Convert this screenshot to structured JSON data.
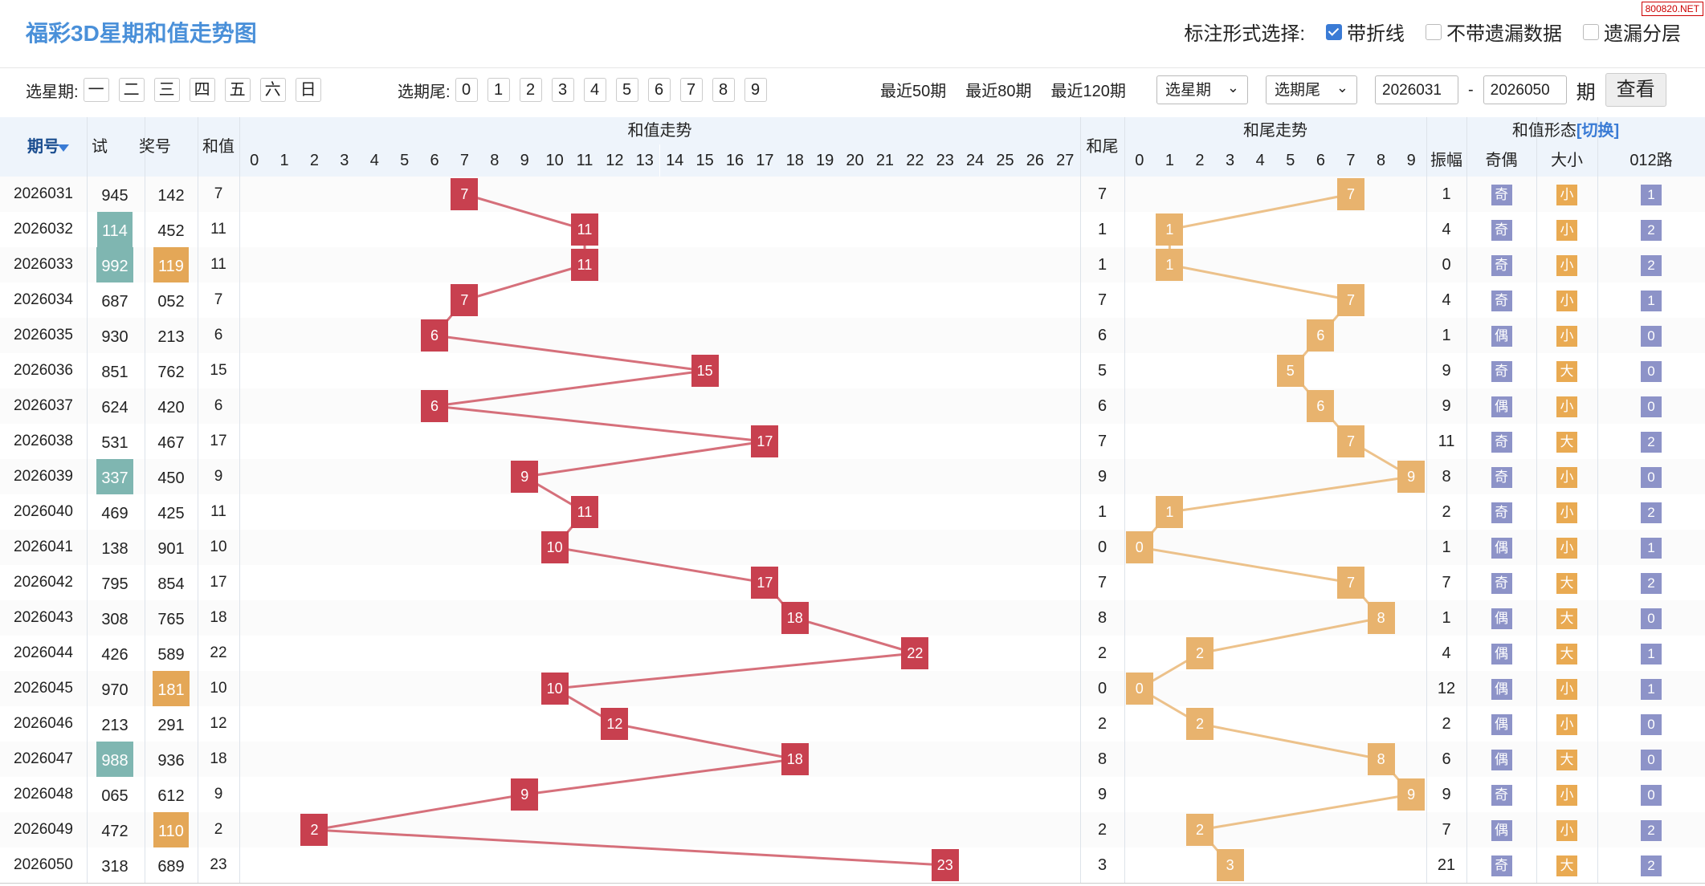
{
  "app": {
    "title": "福彩3D星期和值走势图",
    "badge": "800820.NET"
  },
  "mark_options": {
    "label": "标注形式选择:",
    "options": [
      {
        "label": "带折线",
        "checked": true
      },
      {
        "label": "不带遗漏数据",
        "checked": false
      },
      {
        "label": "遗漏分层",
        "checked": false
      }
    ]
  },
  "filter": {
    "weekday_label": "选星期:",
    "weekdays": [
      "一",
      "二",
      "三",
      "四",
      "五",
      "六",
      "日"
    ],
    "tail_label": "选期尾:",
    "tails": [
      "0",
      "1",
      "2",
      "3",
      "4",
      "5",
      "6",
      "7",
      "8",
      "9"
    ],
    "recent": [
      "最近50期",
      "最近80期",
      "最近120期"
    ],
    "weekday_select": "选星期",
    "tail_select": "选期尾",
    "from": "2026031",
    "dash": "-",
    "to": "2026050",
    "period_label": "期",
    "query": "查看"
  },
  "headers": {
    "issue": "期号",
    "test": "试机",
    "prize": "奖号",
    "sum": "和值",
    "sum_trend": "和值走势",
    "tail": "和尾",
    "tail_trend": "和尾走势",
    "shape": "和值形态",
    "switch": "[切换]",
    "amp": "振幅",
    "oe": "奇偶",
    "bs": "大小",
    "r012": "012路",
    "sum_cols": [
      "0",
      "1",
      "2",
      "3",
      "4",
      "5",
      "6",
      "7",
      "8",
      "9",
      "10",
      "11",
      "12",
      "13",
      "14",
      "15",
      "16",
      "17",
      "18",
      "19",
      "20",
      "21",
      "22",
      "23",
      "24",
      "25",
      "26",
      "27"
    ],
    "tail_cols": [
      "0",
      "1",
      "2",
      "3",
      "4",
      "5",
      "6",
      "7",
      "8",
      "9"
    ]
  },
  "colors": {
    "red": "#c8404f",
    "orange": "#e8b36e",
    "blue": "#8d93c8",
    "teal": "#7fb6b1"
  },
  "rows": [
    {
      "issue": "2026031",
      "test": "945",
      "test_hl": "",
      "prize": "142",
      "prize_hl": "",
      "sum": "7",
      "tail": "7",
      "amp": "1",
      "oe": "奇",
      "bs": "小",
      "r": "1"
    },
    {
      "issue": "2026032",
      "test": "114",
      "test_hl": "teal",
      "prize": "452",
      "prize_hl": "",
      "sum": "11",
      "tail": "1",
      "amp": "4",
      "oe": "奇",
      "bs": "小",
      "r": "2"
    },
    {
      "issue": "2026033",
      "test": "992",
      "test_hl": "teal",
      "prize": "119",
      "prize_hl": "gold",
      "sum": "11",
      "tail": "1",
      "amp": "0",
      "oe": "奇",
      "bs": "小",
      "r": "2"
    },
    {
      "issue": "2026034",
      "test": "687",
      "test_hl": "",
      "prize": "052",
      "prize_hl": "",
      "sum": "7",
      "tail": "7",
      "amp": "4",
      "oe": "奇",
      "bs": "小",
      "r": "1"
    },
    {
      "issue": "2026035",
      "test": "930",
      "test_hl": "",
      "prize": "213",
      "prize_hl": "",
      "sum": "6",
      "tail": "6",
      "amp": "1",
      "oe": "偶",
      "bs": "小",
      "r": "0"
    },
    {
      "issue": "2026036",
      "test": "851",
      "test_hl": "",
      "prize": "762",
      "prize_hl": "",
      "sum": "15",
      "tail": "5",
      "amp": "9",
      "oe": "奇",
      "bs": "大",
      "r": "0"
    },
    {
      "issue": "2026037",
      "test": "624",
      "test_hl": "",
      "prize": "420",
      "prize_hl": "",
      "sum": "6",
      "tail": "6",
      "amp": "9",
      "oe": "偶",
      "bs": "小",
      "r": "0"
    },
    {
      "issue": "2026038",
      "test": "531",
      "test_hl": "",
      "prize": "467",
      "prize_hl": "",
      "sum": "17",
      "tail": "7",
      "amp": "11",
      "oe": "奇",
      "bs": "大",
      "r": "2"
    },
    {
      "issue": "2026039",
      "test": "337",
      "test_hl": "teal",
      "prize": "450",
      "prize_hl": "",
      "sum": "9",
      "tail": "9",
      "amp": "8",
      "oe": "奇",
      "bs": "小",
      "r": "0"
    },
    {
      "issue": "2026040",
      "test": "469",
      "test_hl": "",
      "prize": "425",
      "prize_hl": "",
      "sum": "11",
      "tail": "1",
      "amp": "2",
      "oe": "奇",
      "bs": "小",
      "r": "2"
    },
    {
      "issue": "2026041",
      "test": "138",
      "test_hl": "",
      "prize": "901",
      "prize_hl": "",
      "sum": "10",
      "tail": "0",
      "amp": "1",
      "oe": "偶",
      "bs": "小",
      "r": "1"
    },
    {
      "issue": "2026042",
      "test": "795",
      "test_hl": "",
      "prize": "854",
      "prize_hl": "",
      "sum": "17",
      "tail": "7",
      "amp": "7",
      "oe": "奇",
      "bs": "大",
      "r": "2"
    },
    {
      "issue": "2026043",
      "test": "308",
      "test_hl": "",
      "prize": "765",
      "prize_hl": "",
      "sum": "18",
      "tail": "8",
      "amp": "1",
      "oe": "偶",
      "bs": "大",
      "r": "0"
    },
    {
      "issue": "2026044",
      "test": "426",
      "test_hl": "",
      "prize": "589",
      "prize_hl": "",
      "sum": "22",
      "tail": "2",
      "amp": "4",
      "oe": "偶",
      "bs": "大",
      "r": "1"
    },
    {
      "issue": "2026045",
      "test": "970",
      "test_hl": "",
      "prize": "181",
      "prize_hl": "gold",
      "sum": "10",
      "tail": "0",
      "amp": "12",
      "oe": "偶",
      "bs": "小",
      "r": "1"
    },
    {
      "issue": "2026046",
      "test": "213",
      "test_hl": "",
      "prize": "291",
      "prize_hl": "",
      "sum": "12",
      "tail": "2",
      "amp": "2",
      "oe": "偶",
      "bs": "小",
      "r": "0"
    },
    {
      "issue": "2026047",
      "test": "988",
      "test_hl": "teal",
      "prize": "936",
      "prize_hl": "",
      "sum": "18",
      "tail": "8",
      "amp": "6",
      "oe": "偶",
      "bs": "大",
      "r": "0"
    },
    {
      "issue": "2026048",
      "test": "065",
      "test_hl": "",
      "prize": "612",
      "prize_hl": "",
      "sum": "9",
      "tail": "9",
      "amp": "9",
      "oe": "奇",
      "bs": "小",
      "r": "0"
    },
    {
      "issue": "2026049",
      "test": "472",
      "test_hl": "",
      "prize": "110",
      "prize_hl": "gold",
      "sum": "2",
      "tail": "2",
      "amp": "7",
      "oe": "偶",
      "bs": "小",
      "r": "2"
    },
    {
      "issue": "2026050",
      "test": "318",
      "test_hl": "",
      "prize": "689",
      "prize_hl": "",
      "sum": "23",
      "tail": "3",
      "amp": "21",
      "oe": "奇",
      "bs": "大",
      "r": "2"
    }
  ]
}
